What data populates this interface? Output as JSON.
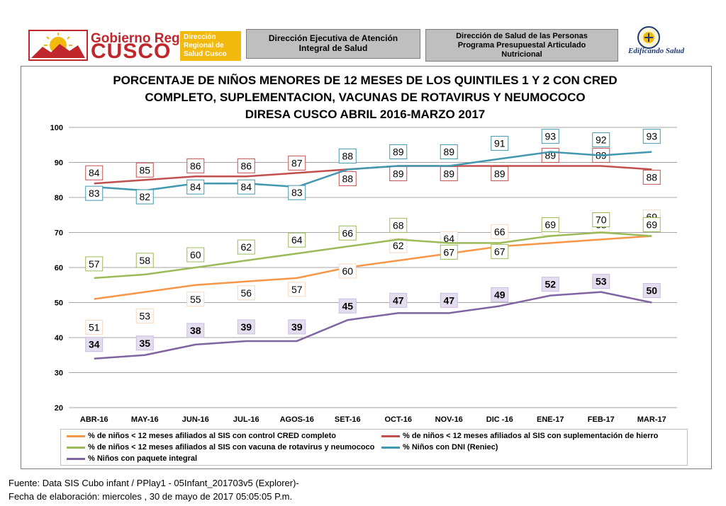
{
  "header": {
    "logo_name_small": "Gobierno Regional",
    "logo_name_big": "CUSCO",
    "logo_badge": "Dirección Regional de Salud Cusco",
    "box1_line1": "Dirección Ejecutiva de Atención",
    "box1_line2": "Integral de Salud",
    "box2_line1": "Dirección de Salud de las Personas",
    "box2_line2": "Programa Presupuestal Articulado",
    "box2_line3": "Nutricional",
    "seal_caption": "Edificando Salud"
  },
  "chart_data": {
    "type": "line",
    "title": [
      "PORCENTAJE DE NIÑOS MENORES DE 12 MESES DE LOS QUINTILES 1 Y 2 CON CRED",
      "COMPLETO, SUPLEMENTACION, VACUNAS DE ROTAVIRUS Y NEUMOCOCO",
      "DIRESA CUSCO ABRIL 2016-MARZO 2017"
    ],
    "categories": [
      "ABR-16",
      "MAY-16",
      "JUN-16",
      "JUL-16",
      "AGOS-16",
      "SET-16",
      "OCT-16",
      "NOV-16",
      "DIC -16",
      "ENE-17",
      "FEB-17",
      "MAR-17"
    ],
    "ylim": [
      20,
      100
    ],
    "yticks": [
      20,
      30,
      40,
      50,
      60,
      70,
      80,
      90,
      100
    ],
    "grid": true,
    "legend_position": "bottom",
    "series": [
      {
        "name": "% de niños < 12 meses afiliados al SIS con control CRED completo",
        "color": "#f79646",
        "values": [
          51,
          53,
          55,
          56,
          57,
          60,
          62,
          64,
          66,
          67,
          68,
          69
        ]
      },
      {
        "name": "% de niños < 12 meses afiliados al SIS con suplementación de hierro",
        "color": "#c0504d",
        "values": [
          84,
          85,
          86,
          86,
          87,
          88,
          89,
          89,
          89,
          89,
          89,
          88
        ]
      },
      {
        "name": "% de niños < 12 meses afiliados al SIS con  vacuna de rotavirus y neumococo",
        "color": "#9bbb59",
        "values": [
          57,
          58,
          60,
          62,
          64,
          66,
          68,
          67,
          67,
          69,
          70,
          69
        ]
      },
      {
        "name": "% Niños con DNI (Reniec)",
        "color": "#4198af",
        "values": [
          83,
          82,
          84,
          84,
          83,
          88,
          89,
          89,
          91,
          93,
          92,
          93
        ]
      },
      {
        "name": "% Niños con paquete integral",
        "color": "#8064a2",
        "values": [
          34,
          35,
          38,
          39,
          39,
          45,
          47,
          47,
          49,
          52,
          53,
          50
        ]
      }
    ]
  },
  "footer": {
    "source": "Fuente: Data SIS Cubo infant / PPlay1 - 05Infant_201703v5 (Explorer)-",
    "date": "Fecha de elaboración: miercoles , 30 de mayo de 2017 05:05:05  P.m."
  }
}
